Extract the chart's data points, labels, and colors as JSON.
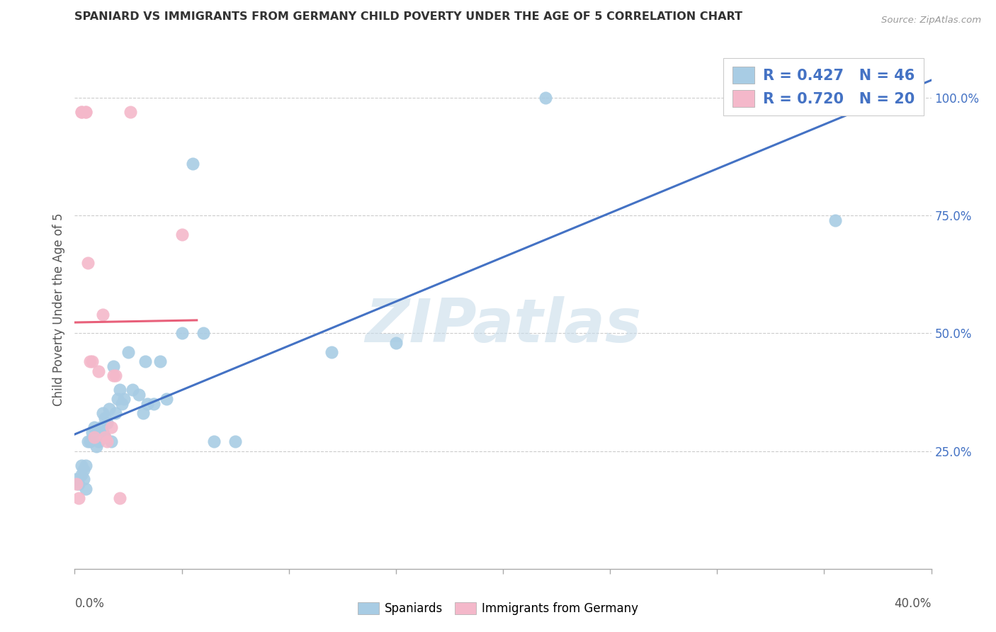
{
  "title": "SPANIARD VS IMMIGRANTS FROM GERMANY CHILD POVERTY UNDER THE AGE OF 5 CORRELATION CHART",
  "source": "Source: ZipAtlas.com",
  "ylabel": "Child Poverty Under the Age of 5",
  "legend_blue_text": "R = 0.427   N = 46",
  "legend_pink_text": "R = 0.720   N = 20",
  "legend_label_blue": "Spaniards",
  "legend_label_pink": "Immigrants from Germany",
  "blue_dot_color": "#a8cce4",
  "pink_dot_color": "#f4b8ca",
  "blue_line_color": "#4472c4",
  "pink_line_color": "#e8607a",
  "legend_text_color": "#4472c4",
  "watermark_color": "#c8dcea",
  "grid_color": "#cccccc",
  "spine_color": "#aaaaaa",
  "axis_label_color": "#555555",
  "title_color": "#333333",
  "source_color": "#999999",
  "blue_dots_x": [
    0.001,
    0.002,
    0.003,
    0.003,
    0.004,
    0.004,
    0.005,
    0.005,
    0.006,
    0.007,
    0.008,
    0.009,
    0.01,
    0.011,
    0.012,
    0.013,
    0.013,
    0.014,
    0.014,
    0.015,
    0.016,
    0.017,
    0.018,
    0.019,
    0.02,
    0.021,
    0.022,
    0.023,
    0.025,
    0.027,
    0.03,
    0.032,
    0.033,
    0.034,
    0.037,
    0.04,
    0.043,
    0.05,
    0.055,
    0.06,
    0.065,
    0.075,
    0.12,
    0.15,
    0.22,
    0.355
  ],
  "blue_dots_y": [
    0.19,
    0.18,
    0.22,
    0.2,
    0.19,
    0.21,
    0.17,
    0.22,
    0.27,
    0.27,
    0.29,
    0.3,
    0.26,
    0.27,
    0.3,
    0.33,
    0.29,
    0.32,
    0.28,
    0.31,
    0.34,
    0.27,
    0.43,
    0.33,
    0.36,
    0.38,
    0.35,
    0.36,
    0.46,
    0.38,
    0.37,
    0.33,
    0.44,
    0.35,
    0.35,
    0.44,
    0.36,
    0.5,
    0.86,
    0.5,
    0.27,
    0.27,
    0.46,
    0.48,
    1.0,
    0.74
  ],
  "pink_dots_x": [
    0.001,
    0.002,
    0.003,
    0.003,
    0.005,
    0.005,
    0.006,
    0.007,
    0.008,
    0.009,
    0.011,
    0.013,
    0.014,
    0.015,
    0.017,
    0.018,
    0.019,
    0.021,
    0.026,
    0.05
  ],
  "pink_dots_y": [
    0.18,
    0.15,
    0.97,
    0.97,
    0.97,
    0.97,
    0.65,
    0.44,
    0.44,
    0.28,
    0.42,
    0.54,
    0.28,
    0.27,
    0.3,
    0.41,
    0.41,
    0.15,
    0.97,
    0.71
  ],
  "xlim": [
    0.0,
    0.4
  ],
  "ylim": [
    0.0,
    1.1
  ],
  "ytick_vals": [
    0.0,
    0.25,
    0.5,
    0.75,
    1.0
  ],
  "ytick_labels": [
    "",
    "25.0%",
    "50.0%",
    "75.0%",
    "100.0%"
  ],
  "xtick_positions": [
    0.0,
    0.05,
    0.1,
    0.15,
    0.2,
    0.25,
    0.3,
    0.35,
    0.4
  ]
}
